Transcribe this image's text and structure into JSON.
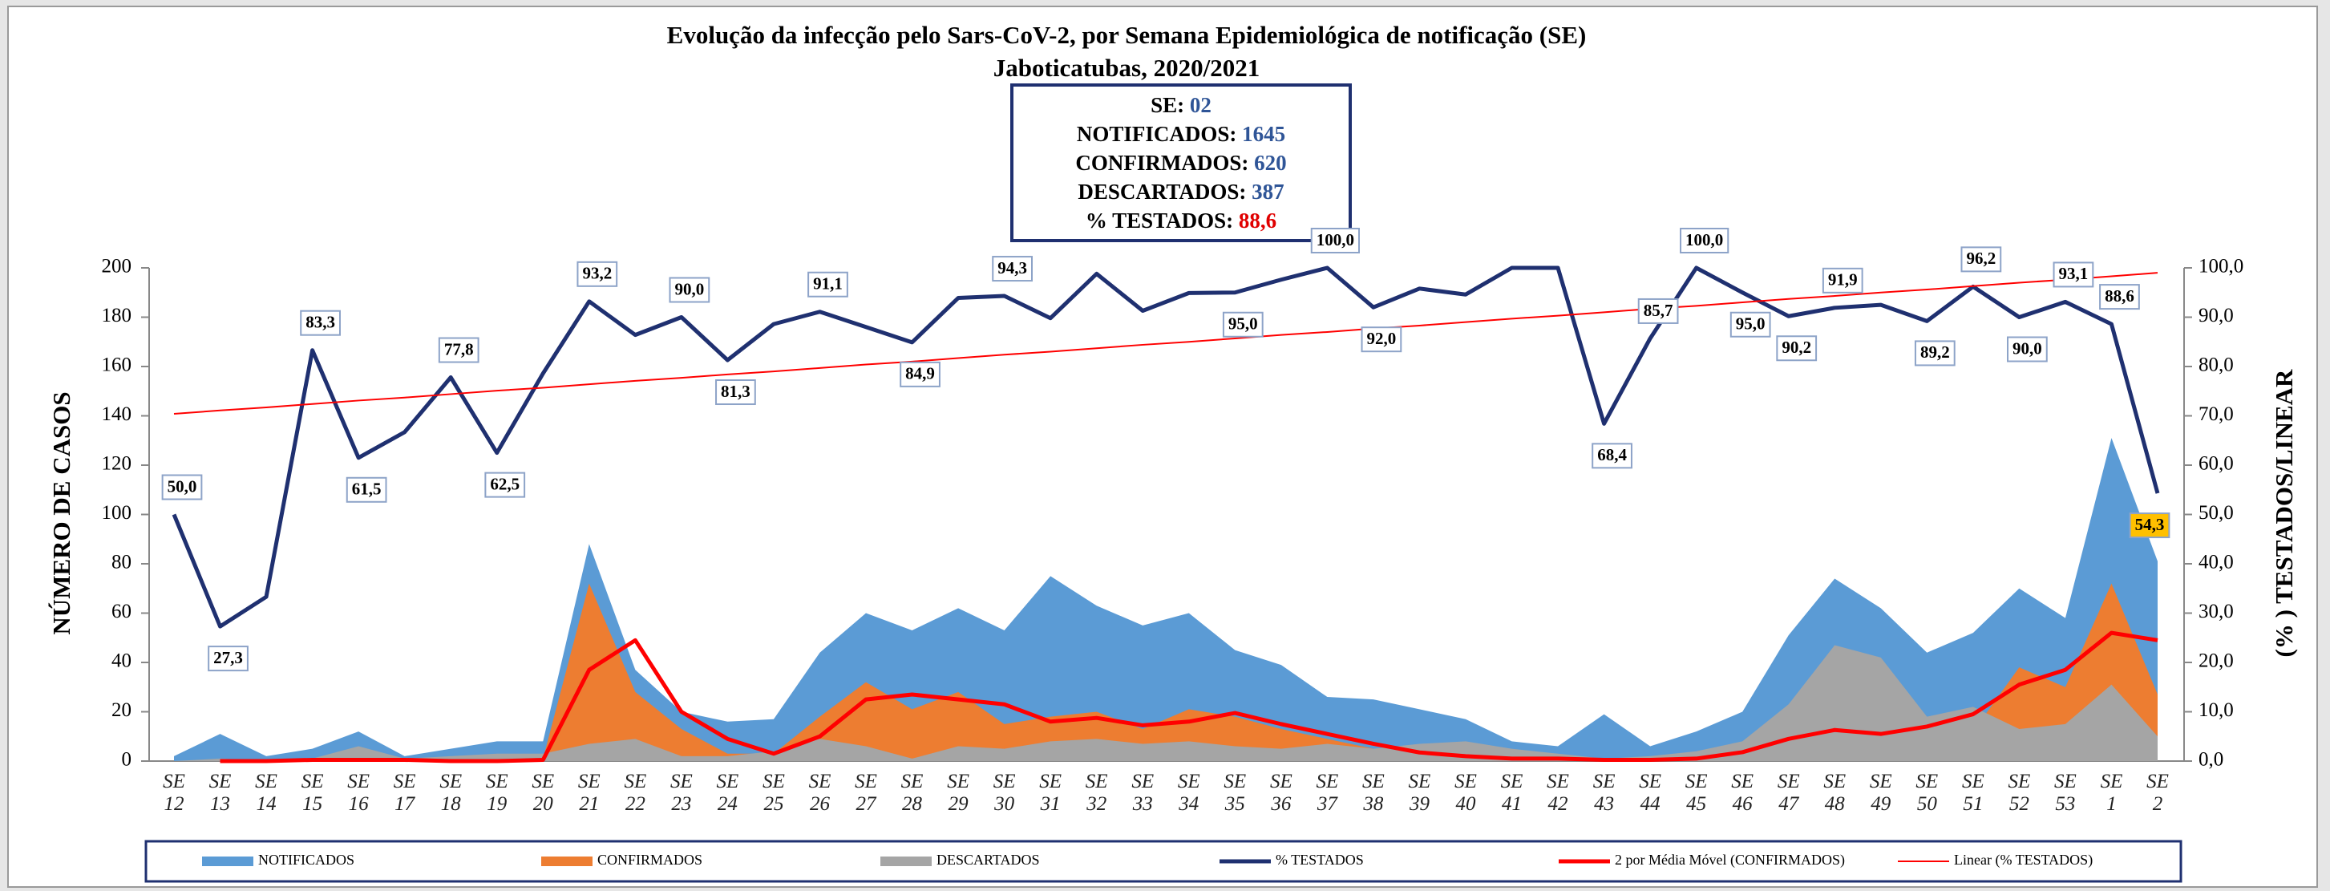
{
  "chart_data": {
    "type": "combo",
    "title": "Evolução da infecção pelo Sars-CoV-2, por Semana Epidemiológica de notificação (SE)",
    "subtitle": "Jaboticatubas, 2020/2021",
    "info_box": [
      {
        "label": "SE:",
        "value": "02",
        "color": "#2f5597"
      },
      {
        "label": "NOTIFICADOS:",
        "value": "1645",
        "color": "#2f5597"
      },
      {
        "label": "CONFIRMADOS:",
        "value": "620",
        "color": "#2f5597"
      },
      {
        "label": "DESCARTADOS:",
        "value": "387",
        "color": "#2f5597"
      },
      {
        "label": "% TESTADOS:",
        "value": "88,6",
        "color": "#e00000"
      }
    ],
    "y_label": "NÚMERO DE CASOS",
    "y2_label": "(% ) TESTADOS/LINEAR",
    "categories": [
      "SE 12",
      "SE 13",
      "SE 14",
      "SE 15",
      "SE 16",
      "SE 17",
      "SE 18",
      "SE 19",
      "SE 20",
      "SE 21",
      "SE 22",
      "SE 23",
      "SE 24",
      "SE 25",
      "SE 26",
      "SE 27",
      "SE 28",
      "SE 29",
      "SE 30",
      "SE 31",
      "SE 32",
      "SE 33",
      "SE 34",
      "SE 35",
      "SE 36",
      "SE 37",
      "SE 38",
      "SE 39",
      "SE 40",
      "SE 41",
      "SE 42",
      "SE 43",
      "SE 44",
      "SE 45",
      "SE 46",
      "SE 47",
      "SE 48",
      "SE 49",
      "SE 50",
      "SE 51",
      "SE 52",
      "SE 53",
      "SE 1",
      "SE 2"
    ],
    "ylim": [
      0,
      200
    ],
    "yticks": [
      0,
      20,
      40,
      60,
      80,
      100,
      120,
      140,
      160,
      180,
      200
    ],
    "y2lim": [
      0,
      100
    ],
    "y2ticks": [
      {
        "value": 0,
        "label": "0,0"
      },
      {
        "value": 10,
        "label": "10,0"
      },
      {
        "value": 20,
        "label": "20,0"
      },
      {
        "value": 30,
        "label": "30,0"
      },
      {
        "value": 40,
        "label": "40,0"
      },
      {
        "value": 50,
        "label": "50,0"
      },
      {
        "value": 60,
        "label": "60,0"
      },
      {
        "value": 70,
        "label": "70,0"
      },
      {
        "value": 80,
        "label": "80,0"
      },
      {
        "value": 90,
        "label": "90,0"
      },
      {
        "value": 100,
        "label": "100,0"
      }
    ],
    "series": [
      {
        "name": "NOTIFICADOS",
        "type": "area",
        "color": "#5b9bd5",
        "values": [
          2,
          11,
          2,
          5,
          12,
          2,
          5,
          8,
          8,
          88,
          37,
          20,
          16,
          17,
          44,
          60,
          53,
          62,
          53,
          75,
          63,
          55,
          60,
          45,
          39,
          26,
          25,
          21,
          17,
          8,
          6,
          19,
          6,
          12,
          20,
          51,
          74,
          62,
          44,
          52,
          70,
          58,
          131,
          81
        ]
      },
      {
        "name": "CONFIRMADOS",
        "type": "area",
        "color": "#ed7d31",
        "values": [
          0,
          0,
          0,
          0,
          1,
          0,
          0,
          0,
          1,
          72,
          28,
          13,
          3,
          3,
          18,
          32,
          21,
          28,
          15,
          18,
          20,
          13,
          21,
          18,
          13,
          9,
          5,
          2,
          2,
          1,
          1,
          0,
          1,
          1,
          3,
          6,
          8,
          6,
          7,
          12,
          38,
          30,
          72,
          27
        ]
      },
      {
        "name": "DESCARTADOS",
        "type": "area",
        "color": "#a5a5a5",
        "values": [
          0,
          1,
          0,
          1,
          6,
          1,
          2,
          3,
          3,
          7,
          9,
          2,
          2,
          4,
          9,
          6,
          1,
          6,
          5,
          8,
          9,
          7,
          8,
          6,
          5,
          7,
          5,
          7,
          8,
          5,
          3,
          1,
          2,
          4,
          8,
          23,
          47,
          42,
          18,
          22,
          13,
          15,
          31,
          10
        ]
      },
      {
        "name": "% TESTADOS",
        "type": "line",
        "axis": "y2",
        "color": "#1f3070",
        "width": 5,
        "values": [
          50,
          27.3,
          33.3,
          83.3,
          61.5,
          66.7,
          77.8,
          62.5,
          78.6,
          93.2,
          86.4,
          90,
          81.3,
          88.6,
          91.1,
          88,
          84.9,
          93.9,
          94.3,
          89.8,
          98.8,
          91.3,
          94.9,
          95,
          97.6,
          100,
          92,
          95.8,
          94.6,
          100,
          100,
          68.4,
          85.7,
          100,
          95,
          90.2,
          91.9,
          92.5,
          89.2,
          96.2,
          90,
          93.1,
          88.6,
          54.3
        ],
        "value_labels": [
          "50,0",
          "27,3",
          null,
          "83,3",
          "61,5",
          null,
          "77,8",
          "62,5",
          null,
          "93,2",
          null,
          "90,0",
          "81,3",
          null,
          "91,1",
          null,
          "84,9",
          null,
          "94,3",
          null,
          null,
          null,
          null,
          "95,0",
          null,
          "100,0",
          "92,0",
          null,
          null,
          null,
          null,
          "68,4",
          "85,7",
          "100,0",
          "95,0",
          "90,2",
          "91,9",
          null,
          "89,2",
          "96,2",
          "90,0",
          "93,1",
          "88,6",
          "54,3"
        ]
      },
      {
        "name": "2 por Média Móvel (CONFIRMADOS)",
        "type": "line",
        "color": "#ff0000",
        "width": 5,
        "values": [
          null,
          0,
          0,
          0.5,
          0.5,
          0.5,
          0,
          0,
          0.5,
          37,
          49,
          20,
          9,
          3,
          10,
          25,
          27,
          25,
          23,
          16,
          17.5,
          14.5,
          16,
          19.5,
          15,
          11,
          7,
          3.5,
          2,
          1,
          1,
          0.5,
          0.5,
          1,
          3.6,
          9,
          12.6,
          11,
          14,
          19,
          31,
          37,
          52,
          49
        ]
      },
      {
        "name": "Linear (% TESTADOS)",
        "type": "line",
        "axis": "y2",
        "color": "#ff0000",
        "width": 2,
        "values": [
          70.4,
          71.1,
          71.7,
          72.4,
          73.1,
          73.7,
          74.4,
          75.1,
          75.7,
          76.4,
          77.1,
          77.7,
          78.4,
          79.0,
          79.7,
          80.4,
          81.0,
          81.7,
          82.4,
          83.0,
          83.7,
          84.4,
          85.0,
          85.7,
          86.4,
          87.0,
          87.7,
          88.3,
          89.0,
          89.7,
          90.3,
          91.0,
          91.7,
          92.3,
          93.0,
          93.7,
          94.3,
          95.0,
          95.6,
          96.3,
          97.0,
          97.6,
          98.3,
          99.0
        ]
      }
    ]
  }
}
